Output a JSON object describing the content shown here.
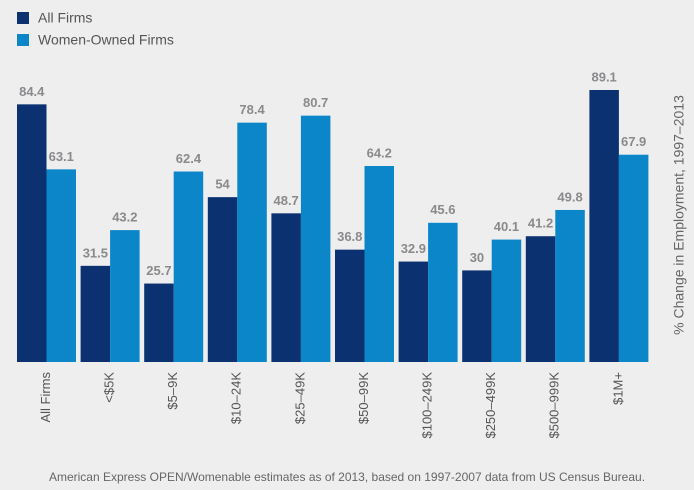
{
  "chart_data": {
    "type": "bar",
    "y_label": "% Change in Employment, 1997–2013",
    "footnote": "American Express OPEN/Womenable estimates as of 2013, based on 1997-2007 data from US Census Bureau.",
    "categories": [
      "All Firms",
      "<$5K",
      "$5–9K",
      "$10–24K",
      "$25–49K",
      "$50–99K",
      "$100–249K",
      "$250–499K",
      "$500–999K",
      "$1M+"
    ],
    "series": [
      {
        "name": "All Firms",
        "color": "#0b3170",
        "values": [
          84.4,
          31.5,
          25.7,
          54,
          48.7,
          36.8,
          32.9,
          30,
          41.2,
          89.1
        ]
      },
      {
        "name": "Women-Owned Firms",
        "color": "#0a86c9",
        "values": [
          63.1,
          43.2,
          62.4,
          78.4,
          80.7,
          64.2,
          45.6,
          40.1,
          49.8,
          67.9
        ]
      }
    ]
  }
}
